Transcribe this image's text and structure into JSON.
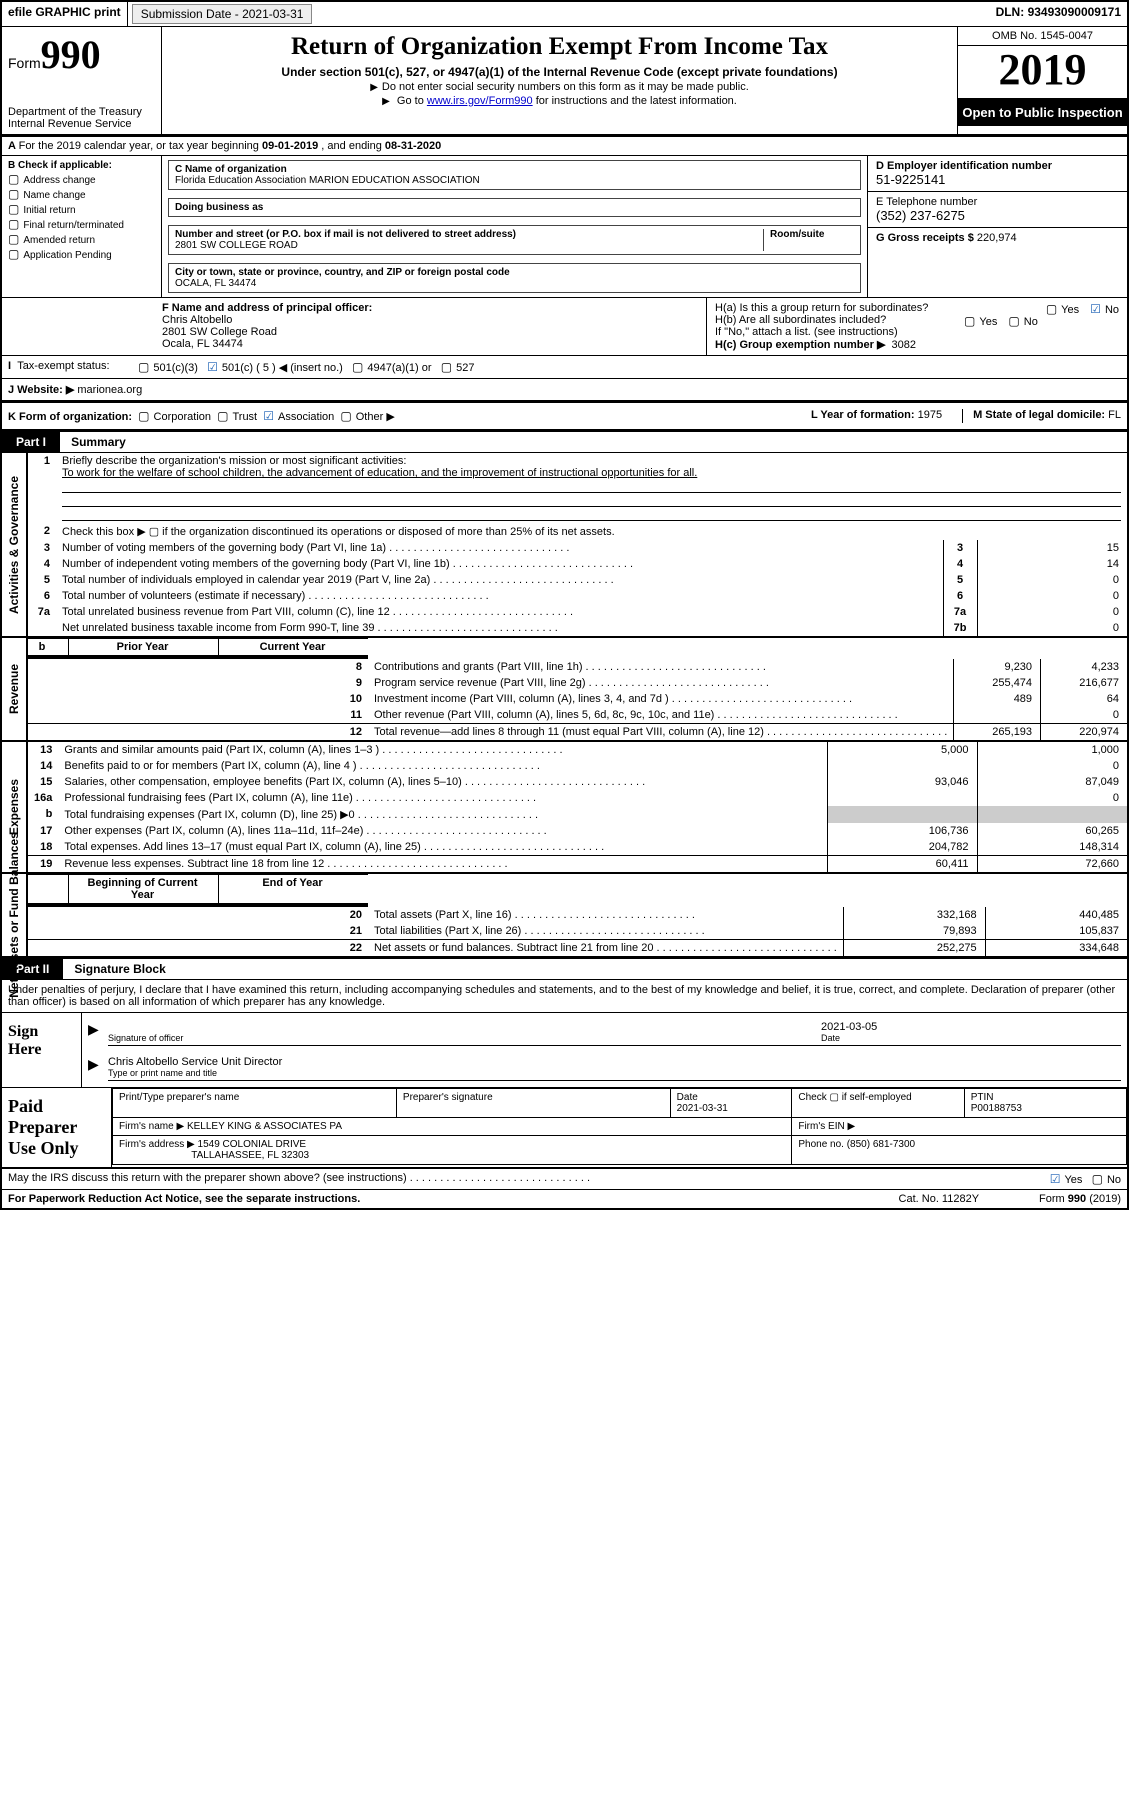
{
  "topbar": {
    "efile": "efile GRAPHIC print",
    "subdate_label": "Submission Date - ",
    "subdate": "2021-03-31",
    "dln_label": "DLN: ",
    "dln": "93493090009171"
  },
  "header": {
    "form_word": "Form",
    "form_no": "990",
    "dept": "Department of the Treasury\nInternal Revenue Service",
    "title": "Return of Organization Exempt From Income Tax",
    "sub": "Under section 501(c), 527, or 4947(a)(1) of the Internal Revenue Code (except private foundations)",
    "note1": "Do not enter social security numbers on this form as it may be made public.",
    "note2_pre": "Go to ",
    "note2_link": "www.irs.gov/Form990",
    "note2_post": " for instructions and the latest information.",
    "omb": "OMB No. 1545-0047",
    "year": "2019",
    "open": "Open to Public Inspection"
  },
  "lineA": {
    "text_pre": "For the 2019 calendar year, or tax year beginning ",
    "begin": "09-01-2019",
    "mid": " , and ending ",
    "end": "08-31-2020"
  },
  "B": {
    "label": "B Check if applicable:",
    "items": [
      "Address change",
      "Name change",
      "Initial return",
      "Final return/terminated",
      "Amended return",
      "Application Pending"
    ]
  },
  "C": {
    "name_label": "C Name of organization",
    "name": "Florida Education Association MARION EDUCATION ASSOCIATION",
    "dba_label": "Doing business as",
    "dba": "",
    "street_label": "Number and street (or P.O. box if mail is not delivered to street address)",
    "room_label": "Room/suite",
    "street": "2801 SW COLLEGE ROAD",
    "city_label": "City or town, state or province, country, and ZIP or foreign postal code",
    "city": "OCALA, FL  34474"
  },
  "D": {
    "label": "D Employer identification number",
    "val": "51-9225141"
  },
  "E": {
    "label": "E Telephone number",
    "val": "(352) 237-6275"
  },
  "G": {
    "label": "G Gross receipts $ ",
    "val": "220,974"
  },
  "F": {
    "label": "F  Name and address of principal officer:",
    "name": "Chris Altobello",
    "street": "2801 SW College Road",
    "city": "Ocala, FL  34474"
  },
  "H": {
    "a": "H(a)  Is this a group return for subordinates?",
    "b": "H(b)  Are all subordinates included?",
    "note": "If \"No,\" attach a list. (see instructions)",
    "c_label": "H(c)  Group exemption number ▶",
    "c_val": "3082",
    "yes": "Yes",
    "no": "No"
  },
  "I": {
    "label": "Tax-exempt status:",
    "opt1": "501(c)(3)",
    "opt2": "501(c) ( 5 ) ◀ (insert no.)",
    "opt3": "4947(a)(1) or",
    "opt4": "527"
  },
  "J": {
    "label": "J  Website: ▶",
    "val": "marionea.org"
  },
  "K": {
    "label": "K Form of organization:",
    "opts": [
      "Corporation",
      "Trust",
      "Association",
      "Other ▶"
    ],
    "L_label": "L Year of formation: ",
    "L_val": "1975",
    "M_label": "M State of legal domicile: ",
    "M_val": "FL"
  },
  "part1": {
    "tab": "Part I",
    "title": "Summary"
  },
  "mission_label": "Briefly describe the organization's mission or most significant activities:",
  "mission": "To work for the welfare of school children, the advancement of education, and the improvement of instructional opportunities for all.",
  "line2": "Check this box ▶ ▢  if the organization discontinued its operations or disposed of more than 25% of its net assets.",
  "rows_gov": [
    {
      "n": "3",
      "d": "Number of voting members of the governing body (Part VI, line 1a)",
      "b": "3",
      "v": "15"
    },
    {
      "n": "4",
      "d": "Number of independent voting members of the governing body (Part VI, line 1b)",
      "b": "4",
      "v": "14"
    },
    {
      "n": "5",
      "d": "Total number of individuals employed in calendar year 2019 (Part V, line 2a)",
      "b": "5",
      "v": "0"
    },
    {
      "n": "6",
      "d": "Total number of volunteers (estimate if necessary)",
      "b": "6",
      "v": "0"
    },
    {
      "n": "7a",
      "d": "Total unrelated business revenue from Part VIII, column (C), line 12",
      "b": "7a",
      "v": "0"
    },
    {
      "n": "",
      "d": "Net unrelated business taxable income from Form 990-T, line 39",
      "b": "7b",
      "v": "0"
    }
  ],
  "col_prior": "Prior Year",
  "col_current": "Current Year",
  "rows_rev": [
    {
      "n": "8",
      "d": "Contributions and grants (Part VIII, line 1h)",
      "p": "9,230",
      "c": "4,233"
    },
    {
      "n": "9",
      "d": "Program service revenue (Part VIII, line 2g)",
      "p": "255,474",
      "c": "216,677"
    },
    {
      "n": "10",
      "d": "Investment income (Part VIII, column (A), lines 3, 4, and 7d )",
      "p": "489",
      "c": "64"
    },
    {
      "n": "11",
      "d": "Other revenue (Part VIII, column (A), lines 5, 6d, 8c, 9c, 10c, and 11e)",
      "p": "",
      "c": "0"
    },
    {
      "n": "12",
      "d": "Total revenue—add lines 8 through 11 (must equal Part VIII, column (A), line 12)",
      "p": "265,193",
      "c": "220,974"
    }
  ],
  "rows_exp": [
    {
      "n": "13",
      "d": "Grants and similar amounts paid (Part IX, column (A), lines 1–3 )",
      "p": "5,000",
      "c": "1,000"
    },
    {
      "n": "14",
      "d": "Benefits paid to or for members (Part IX, column (A), line 4 )",
      "p": "",
      "c": "0"
    },
    {
      "n": "15",
      "d": "Salaries, other compensation, employee benefits (Part IX, column (A), lines 5–10)",
      "p": "93,046",
      "c": "87,049"
    },
    {
      "n": "16a",
      "d": "Professional fundraising fees (Part IX, column (A), line 11e)",
      "p": "",
      "c": "0"
    },
    {
      "n": "b",
      "d": "Total fundraising expenses (Part IX, column (D), line 25) ▶0",
      "p": "GREY",
      "c": "GREY"
    },
    {
      "n": "17",
      "d": "Other expenses (Part IX, column (A), lines 11a–11d, 11f–24e)",
      "p": "106,736",
      "c": "60,265"
    },
    {
      "n": "18",
      "d": "Total expenses. Add lines 13–17 (must equal Part IX, column (A), line 25)",
      "p": "204,782",
      "c": "148,314"
    },
    {
      "n": "19",
      "d": "Revenue less expenses. Subtract line 18 from line 12",
      "p": "60,411",
      "c": "72,660"
    }
  ],
  "col_begin": "Beginning of Current Year",
  "col_end": "End of Year",
  "rows_net": [
    {
      "n": "20",
      "d": "Total assets (Part X, line 16)",
      "p": "332,168",
      "c": "440,485"
    },
    {
      "n": "21",
      "d": "Total liabilities (Part X, line 26)",
      "p": "79,893",
      "c": "105,837"
    },
    {
      "n": "22",
      "d": "Net assets or fund balances. Subtract line 21 from line 20",
      "p": "252,275",
      "c": "334,648"
    }
  ],
  "vlabels": {
    "gov": "Activities & Governance",
    "rev": "Revenue",
    "exp": "Expenses",
    "net": "Net Assets or Fund Balances"
  },
  "part2": {
    "tab": "Part II",
    "title": "Signature Block"
  },
  "penalty": "Under penalties of perjury, I declare that I have examined this return, including accompanying schedules and statements, and to the best of my knowledge and belief, it is true, correct, and complete. Declaration of preparer (other than officer) is based on all information of which preparer has any knowledge.",
  "sign": {
    "label": "Sign Here",
    "sig_of_officer": "Signature of officer",
    "date_label": "Date",
    "date": "2021-03-05",
    "name": "Chris Altobello  Service Unit Director",
    "name_cap": "Type or print name and title"
  },
  "prep": {
    "label": "Paid Preparer Use Only",
    "h_print": "Print/Type preparer's name",
    "h_sig": "Preparer's signature",
    "h_date": "Date",
    "date": "2021-03-31",
    "h_check": "Check ▢ if self-employed",
    "h_ptin": "PTIN",
    "ptin": "P00188753",
    "firm_label": "Firm's name    ▶",
    "firm": "KELLEY KING & ASSOCIATES PA",
    "ein_label": "Firm's EIN ▶",
    "ein": "",
    "addr_label": "Firm's address ▶",
    "addr1": "1549 COLONIAL DRIVE",
    "addr2": "TALLAHASSEE, FL  32303",
    "phone_label": "Phone no. ",
    "phone": "(850) 681-7300"
  },
  "discuss": {
    "q": "May the IRS discuss this return with the preparer shown above? (see instructions)",
    "yes": "Yes",
    "no": "No"
  },
  "footer": {
    "pra": "For Paperwork Reduction Act Notice, see the separate instructions.",
    "cat": "Cat. No. 11282Y",
    "form": "Form 990 (2019)"
  }
}
